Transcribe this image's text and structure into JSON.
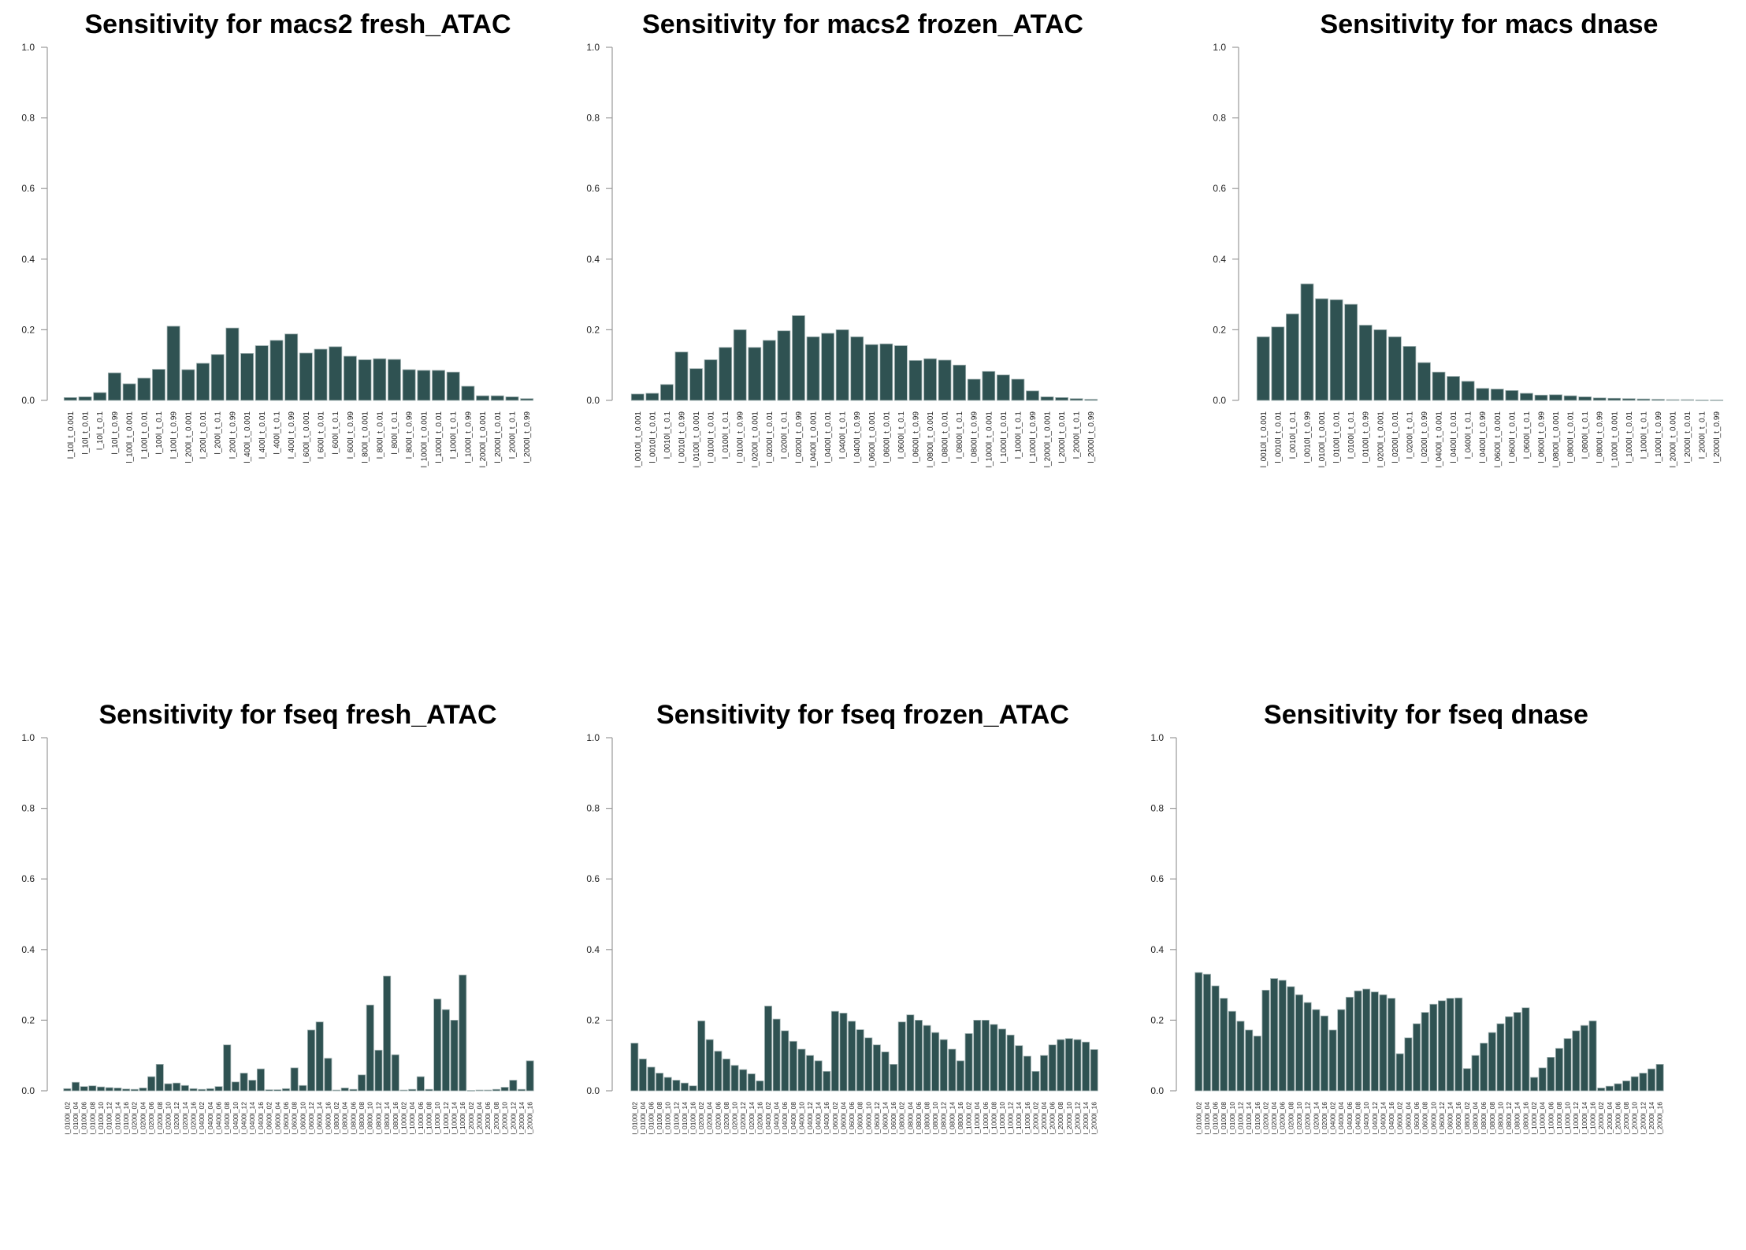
{
  "colors": {
    "bar": "#2f5252",
    "bar_edge": "#9fb0b0",
    "axis": "#999999",
    "background": "#ffffff"
  },
  "chart_data": [
    {
      "type": "bar",
      "title": "Sensitivity for  macs2 fresh_ATAC",
      "ylim": [
        0,
        1
      ],
      "yticks": [
        "0.0",
        "0.2",
        "0.4",
        "0.6",
        "0.8",
        "1.0"
      ],
      "categories": [
        "l_10l_t_0.001",
        "l_10l_t_0.01",
        "l_10l_t_0.1",
        "l_10l_t_0.99",
        "l_100l_t_0.001",
        "l_100l_t_0.01",
        "l_100l_t_0.1",
        "l_100l_t_0.99",
        "l_200l_t_0.001",
        "l_200l_t_0.01",
        "l_200l_t_0.1",
        "l_200l_t_0.99",
        "l_400l_t_0.001",
        "l_400l_t_0.01",
        "l_400l_t_0.1",
        "l_400l_t_0.99",
        "l_600l_t_0.001",
        "l_600l_t_0.01",
        "l_600l_t_0.1",
        "l_600l_t_0.99",
        "l_800l_t_0.001",
        "l_800l_t_0.01",
        "l_800l_t_0.1",
        "l_800l_t_0.99",
        "l_1000l_t_0.001",
        "l_1000l_t_0.01",
        "l_1000l_t_0.1",
        "l_1000l_t_0.99",
        "l_2000l_t_0.001",
        "l_2000l_t_0.01",
        "l_2000l_t_0.1",
        "l_2000l_t_0.99"
      ],
      "values": [
        0.008,
        0.01,
        0.022,
        0.078,
        0.047,
        0.063,
        0.088,
        0.21,
        0.087,
        0.105,
        0.13,
        0.205,
        0.133,
        0.155,
        0.17,
        0.188,
        0.134,
        0.145,
        0.152,
        0.125,
        0.115,
        0.118,
        0.116,
        0.087,
        0.085,
        0.085,
        0.08,
        0.04,
        0.013,
        0.013,
        0.01,
        0.005
      ]
    },
    {
      "type": "bar",
      "title": "Sensitivity for  macs2 frozen_ATAC",
      "ylim": [
        0,
        1
      ],
      "yticks": [
        "0.0",
        "0.2",
        "0.4",
        "0.6",
        "0.8",
        "1.0"
      ],
      "categories": [
        "l_0010l_t_0.001",
        "l_0010l_t_0.01",
        "l_0010l_t_0.1",
        "l_0010l_t_0.99",
        "l_0100l_t_0.001",
        "l_0100l_t_0.01",
        "l_0100l_t_0.1",
        "l_0100l_t_0.99",
        "l_0200l_t_0.001",
        "l_0200l_t_0.01",
        "l_0200l_t_0.1",
        "l_0200l_t_0.99",
        "l_0400l_t_0.001",
        "l_0400l_t_0.01",
        "l_0400l_t_0.1",
        "l_0400l_t_0.99",
        "l_0600l_t_0.001",
        "l_0600l_t_0.01",
        "l_0600l_t_0.1",
        "l_0600l_t_0.99",
        "l_0800l_t_0.001",
        "l_0800l_t_0.01",
        "l_0800l_t_0.1",
        "l_0800l_t_0.99",
        "l_1000l_t_0.001",
        "l_1000l_t_0.01",
        "l_1000l_t_0.1",
        "l_1000l_t_0.99",
        "l_2000l_t_0.001",
        "l_2000l_t_0.01",
        "l_2000l_t_0.1",
        "l_2000l_t_0.99"
      ],
      "values": [
        0.018,
        0.02,
        0.045,
        0.137,
        0.09,
        0.115,
        0.15,
        0.2,
        0.15,
        0.17,
        0.197,
        0.24,
        0.18,
        0.19,
        0.2,
        0.18,
        0.158,
        0.16,
        0.155,
        0.113,
        0.118,
        0.114,
        0.1,
        0.06,
        0.082,
        0.072,
        0.06,
        0.027,
        0.01,
        0.008,
        0.005,
        0.003
      ]
    },
    {
      "type": "bar",
      "title": "Sensitivity for  macs dnase",
      "ylim": [
        0,
        1
      ],
      "yticks": [
        "0.0",
        "0.2",
        "0.4",
        "0.6",
        "0.8",
        "1.0"
      ],
      "categories": [
        "l_0010l_t_0.001",
        "l_0010l_t_0.01",
        "l_0010l_t_0.1",
        "l_0010l_t_0.99",
        "l_0100l_t_0.001",
        "l_0100l_t_0.01",
        "l_0100l_t_0.1",
        "l_0100l_t_0.99",
        "l_0200l_t_0.001",
        "l_0200l_t_0.01",
        "l_0200l_t_0.1",
        "l_0200l_t_0.99",
        "l_0400l_t_0.001",
        "l_0400l_t_0.01",
        "l_0400l_t_0.1",
        "l_0400l_t_0.99",
        "l_0600l_t_0.001",
        "l_0600l_t_0.01",
        "l_0600l_t_0.1",
        "l_0600l_t_0.99",
        "l_0800l_t_0.001",
        "l_0800l_t_0.01",
        "l_0800l_t_0.1",
        "l_0800l_t_0.99",
        "l_1000l_t_0.001",
        "l_1000l_t_0.01",
        "l_1000l_t_0.1",
        "l_1000l_t_0.99",
        "l_2000l_t_0.001",
        "l_2000l_t_0.01",
        "l_2000l_t_0.1",
        "l_2000l_t_0.99"
      ],
      "values": [
        0.18,
        0.208,
        0.245,
        0.33,
        0.288,
        0.285,
        0.272,
        0.213,
        0.2,
        0.18,
        0.153,
        0.107,
        0.08,
        0.068,
        0.054,
        0.034,
        0.032,
        0.028,
        0.02,
        0.015,
        0.016,
        0.013,
        0.01,
        0.007,
        0.006,
        0.005,
        0.004,
        0.003,
        0.002,
        0.002,
        0.001,
        0.001
      ]
    },
    {
      "type": "bar",
      "title": "Sensitivity for  fseq fresh_ATAC",
      "ylim": [
        0,
        1
      ],
      "yticks": [
        "0.0",
        "0.2",
        "0.4",
        "0.6",
        "0.8",
        "1.0"
      ],
      "categories": [
        "l_0100l_02",
        "l_0100l_04",
        "l_0100l_06",
        "l_0100l_08",
        "l_0100l_10",
        "l_0100l_12",
        "l_0100l_14",
        "l_0100l_16",
        "l_0200l_02",
        "l_0200l_04",
        "l_0200l_06",
        "l_0200l_08",
        "l_0200l_10",
        "l_0200l_12",
        "l_0200l_14",
        "l_0200l_16",
        "l_0400l_02",
        "l_0400l_04",
        "l_0400l_06",
        "l_0400l_08",
        "l_0400l_10",
        "l_0400l_12",
        "l_0400l_14",
        "l_0400l_16",
        "l_0600l_02",
        "l_0600l_04",
        "l_0600l_06",
        "l_0600l_08",
        "l_0600l_10",
        "l_0600l_12",
        "l_0600l_14",
        "l_0600l_16",
        "l_0800l_02",
        "l_0800l_04",
        "l_0800l_06",
        "l_0800l_08",
        "l_0800l_10",
        "l_0800l_12",
        "l_0800l_14",
        "l_0800l_16",
        "l_1000l_02",
        "l_1000l_04",
        "l_1000l_06",
        "l_1000l_08",
        "l_1000l_10",
        "l_1000l_12",
        "l_1000l_14",
        "l_1000l_16",
        "l_2000l_02",
        "l_2000l_04",
        "l_2000l_06",
        "l_2000l_08",
        "l_2000l_10",
        "l_2000l_12",
        "l_2000l_14",
        "l_2000l_16"
      ],
      "values": [
        0.006,
        0.024,
        0.012,
        0.014,
        0.011,
        0.009,
        0.008,
        0.005,
        0.004,
        0.008,
        0.04,
        0.075,
        0.02,
        0.022,
        0.015,
        0.006,
        0.004,
        0.006,
        0.012,
        0.13,
        0.025,
        0.05,
        0.03,
        0.062,
        0.003,
        0.003,
        0.006,
        0.065,
        0.015,
        0.172,
        0.195,
        0.092,
        0.002,
        0.008,
        0.004,
        0.045,
        0.243,
        0.115,
        0.325,
        0.102,
        0.002,
        0.004,
        0.04,
        0.004,
        0.26,
        0.23,
        0.2,
        0.328,
        0.001,
        0.002,
        0.002,
        0.004,
        0.01,
        0.03,
        0.004,
        0.085
      ]
    },
    {
      "type": "bar",
      "title": "Sensitivity for  fseq frozen_ATAC",
      "ylim": [
        0,
        1
      ],
      "yticks": [
        "0.0",
        "0.2",
        "0.4",
        "0.6",
        "0.8",
        "1.0"
      ],
      "categories": [
        "l_0100l_02",
        "l_0100l_04",
        "l_0100l_06",
        "l_0100l_08",
        "l_0100l_10",
        "l_0100l_12",
        "l_0100l_14",
        "l_0100l_16",
        "l_0200l_02",
        "l_0200l_04",
        "l_0200l_06",
        "l_0200l_08",
        "l_0200l_10",
        "l_0200l_12",
        "l_0200l_14",
        "l_0200l_16",
        "l_0400l_02",
        "l_0400l_04",
        "l_0400l_06",
        "l_0400l_08",
        "l_0400l_10",
        "l_0400l_12",
        "l_0400l_14",
        "l_0400l_16",
        "l_0600l_02",
        "l_0600l_04",
        "l_0600l_06",
        "l_0600l_08",
        "l_0600l_10",
        "l_0600l_12",
        "l_0600l_14",
        "l_0600l_16",
        "l_0800l_02",
        "l_0800l_04",
        "l_0800l_06",
        "l_0800l_08",
        "l_0800l_10",
        "l_0800l_12",
        "l_0800l_14",
        "l_0800l_16",
        "l_1000l_02",
        "l_1000l_04",
        "l_1000l_06",
        "l_1000l_08",
        "l_1000l_10",
        "l_1000l_12",
        "l_1000l_14",
        "l_1000l_16",
        "l_2000l_02",
        "l_2000l_04",
        "l_2000l_06",
        "l_2000l_08",
        "l_2000l_10",
        "l_2000l_12",
        "l_2000l_14",
        "l_2000l_16"
      ],
      "values": [
        0.135,
        0.09,
        0.067,
        0.05,
        0.038,
        0.03,
        0.022,
        0.014,
        0.198,
        0.145,
        0.112,
        0.09,
        0.072,
        0.06,
        0.048,
        0.028,
        0.24,
        0.203,
        0.17,
        0.14,
        0.118,
        0.1,
        0.085,
        0.055,
        0.225,
        0.22,
        0.197,
        0.173,
        0.15,
        0.13,
        0.11,
        0.075,
        0.195,
        0.215,
        0.2,
        0.185,
        0.165,
        0.145,
        0.118,
        0.085,
        0.162,
        0.2,
        0.2,
        0.188,
        0.175,
        0.158,
        0.128,
        0.098,
        0.055,
        0.1,
        0.13,
        0.145,
        0.148,
        0.145,
        0.138,
        0.117
      ]
    },
    {
      "type": "bar",
      "title": "Sensitivity for  fseq dnase",
      "ylim": [
        0,
        1
      ],
      "yticks": [
        "0.0",
        "0.2",
        "0.4",
        "0.6",
        "0.8",
        "1.0"
      ],
      "categories": [
        "l_0100l_02",
        "l_0100l_04",
        "l_0100l_06",
        "l_0100l_08",
        "l_0100l_10",
        "l_0100l_12",
        "l_0100l_14",
        "l_0100l_16",
        "l_0200l_02",
        "l_0200l_04",
        "l_0200l_06",
        "l_0200l_08",
        "l_0200l_10",
        "l_0200l_12",
        "l_0200l_14",
        "l_0200l_16",
        "l_0400l_02",
        "l_0400l_04",
        "l_0400l_06",
        "l_0400l_08",
        "l_0400l_10",
        "l_0400l_12",
        "l_0400l_14",
        "l_0400l_16",
        "l_0600l_02",
        "l_0600l_04",
        "l_0600l_06",
        "l_0600l_08",
        "l_0600l_10",
        "l_0600l_12",
        "l_0600l_14",
        "l_0600l_16",
        "l_0800l_02",
        "l_0800l_04",
        "l_0800l_06",
        "l_0800l_08",
        "l_0800l_10",
        "l_0800l_12",
        "l_0800l_14",
        "l_0800l_16",
        "l_1000l_02",
        "l_1000l_04",
        "l_1000l_06",
        "l_1000l_08",
        "l_1000l_10",
        "l_1000l_12",
        "l_1000l_14",
        "l_1000l_16",
        "l_2000l_02",
        "l_2000l_04",
        "l_2000l_06",
        "l_2000l_08",
        "l_2000l_10",
        "l_2000l_12",
        "l_2000l_14",
        "l_2000l_16"
      ],
      "values": [
        0.335,
        0.33,
        0.297,
        0.262,
        0.225,
        0.197,
        0.172,
        0.155,
        0.285,
        0.318,
        0.313,
        0.295,
        0.272,
        0.25,
        0.23,
        0.212,
        0.172,
        0.23,
        0.265,
        0.283,
        0.288,
        0.28,
        0.272,
        0.262,
        0.105,
        0.15,
        0.19,
        0.222,
        0.245,
        0.255,
        0.262,
        0.263,
        0.063,
        0.1,
        0.135,
        0.165,
        0.19,
        0.21,
        0.222,
        0.235,
        0.038,
        0.065,
        0.095,
        0.12,
        0.148,
        0.17,
        0.185,
        0.198,
        0.008,
        0.013,
        0.02,
        0.028,
        0.04,
        0.05,
        0.062,
        0.075
      ]
    }
  ]
}
